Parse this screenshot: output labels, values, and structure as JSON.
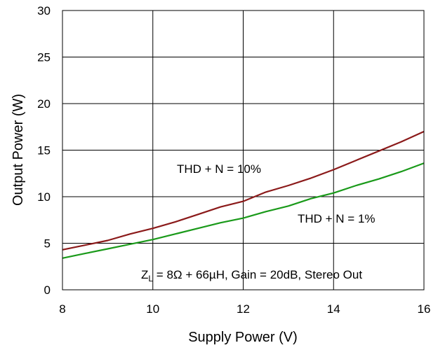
{
  "chart_data": {
    "type": "line",
    "title": "",
    "xlabel": "Supply Power (V)",
    "ylabel": "Output Power (W)",
    "xlim": [
      8,
      16
    ],
    "ylim": [
      0,
      30
    ],
    "xticks": [
      8,
      10,
      12,
      14,
      16
    ],
    "yticks": [
      0,
      5,
      10,
      15,
      20,
      25,
      30
    ],
    "grid": true,
    "series": [
      {
        "name": "THD + N = 10%",
        "color": "#8b1a1a",
        "x": [
          8,
          8.5,
          9,
          9.5,
          10,
          10.5,
          11,
          11.5,
          12,
          12.5,
          13,
          13.5,
          14,
          14.5,
          15,
          15.5,
          16
        ],
        "y": [
          4.3,
          4.8,
          5.3,
          6.0,
          6.6,
          7.3,
          8.1,
          8.9,
          9.5,
          10.5,
          11.2,
          12.0,
          12.9,
          13.9,
          14.9,
          15.9,
          17.0
        ]
      },
      {
        "name": "THD + N = 1%",
        "color": "#1a9a1a",
        "x": [
          8,
          8.5,
          9,
          9.5,
          10,
          10.5,
          11,
          11.5,
          12,
          12.5,
          13,
          13.5,
          14,
          14.5,
          15,
          15.5,
          16
        ],
        "y": [
          3.4,
          3.9,
          4.4,
          4.9,
          5.4,
          6.0,
          6.6,
          7.2,
          7.7,
          8.4,
          9.0,
          9.8,
          10.4,
          11.2,
          11.9,
          12.7,
          13.6
        ]
      }
    ],
    "annotations": {
      "series_label_1": "THD + N = 10%",
      "series_label_2": "THD + N = 1%",
      "condition_z": "Z",
      "condition_sub": "L",
      "condition_rest": " = 8Ω + 66µH, Gain = 20dB, Stereo Out"
    }
  }
}
